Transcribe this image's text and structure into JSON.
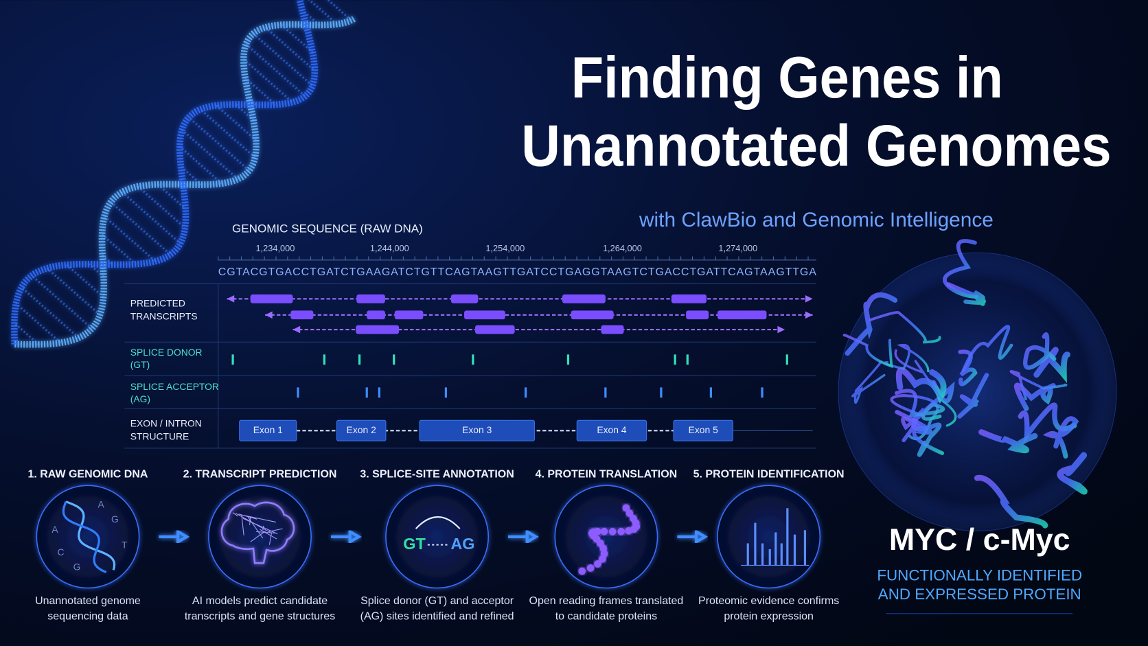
{
  "header": {
    "title_lines": [
      "Finding Genes in",
      "Unannotated Genomes"
    ],
    "subtitle": "with ClawBio and Genomic Intelligence"
  },
  "genome_panel": {
    "title": "GENOMIC SEQUENCE (RAW DNA)",
    "coordinates": [
      "1,234,000",
      "1,244,000",
      "1,254,000",
      "1,264,000",
      "1,274,000"
    ],
    "sequence": "CGTACGTGACCTGATCTGAAGATCTGTTCAGTAAGTTGATCCTGAGGTAAGTCTGACCTGATTCAGTAAGTTGA",
    "tracks": [
      {
        "label_lines": [
          "PREDICTED",
          "TRANSCRIPTS"
        ]
      },
      {
        "label_lines": [
          "SPLICE DONOR",
          "(GT)"
        ]
      },
      {
        "label_lines": [
          "SPLICE ACCEPTOR",
          "(AG)"
        ]
      },
      {
        "label_lines": [
          "EXON / INTRON",
          "STRUCTURE"
        ]
      }
    ],
    "exons": [
      "Exon 1",
      "Exon 2",
      "Exon 3",
      "Exon 4",
      "Exon 5"
    ]
  },
  "steps": [
    {
      "title": "1. RAW GENOMIC DNA",
      "caption_lines": [
        "Unannotated genome",
        "sequencing data"
      ]
    },
    {
      "title": "2. TRANSCRIPT PREDICTION",
      "caption_lines": [
        "AI models predict candidate",
        "transcripts and gene structures"
      ]
    },
    {
      "title": "3. SPLICE-SITE ANNOTATION",
      "caption_lines": [
        "Splice donor (GT) and acceptor",
        "(AG) sites identified and refined"
      ]
    },
    {
      "title": "4. PROTEIN TRANSLATION",
      "caption_lines": [
        "Open reading frames translated",
        "to candidate proteins"
      ]
    },
    {
      "title": "5. PROTEIN IDENTIFICATION",
      "caption_lines": [
        "Proteomic evidence confirms",
        "protein expression"
      ]
    }
  ],
  "icon_letters": [
    "A",
    "G",
    "T",
    "A",
    "C",
    "G"
  ],
  "splice_icon": {
    "donor": "GT",
    "acceptor": "AG"
  },
  "protein": {
    "name": "MYC / c-Myc",
    "description_lines": [
      "FUNCTIONALLY IDENTIFIED",
      "AND EXPRESSED PROTEIN"
    ]
  }
}
